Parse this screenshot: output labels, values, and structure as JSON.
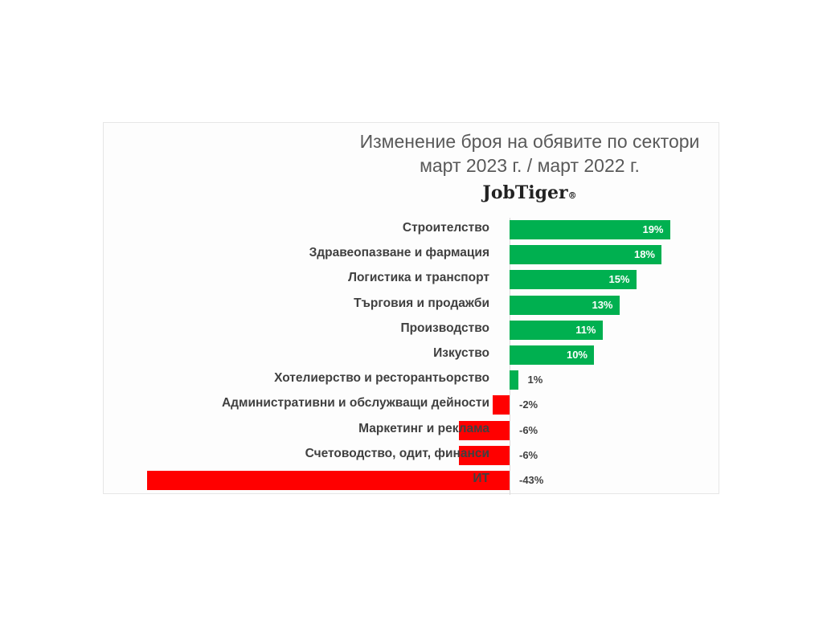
{
  "chart_data": {
    "type": "bar",
    "orientation": "horizontal",
    "title": "Изменение броя на обявите по сектори",
    "subtitle": "март 2023 г. / март 2022 г.",
    "brand": "JobTiger",
    "brand_mark": "®",
    "xlabel": "",
    "ylabel": "",
    "grid": false,
    "legend": null,
    "categories": [
      "Строителство",
      "Здравеопазване и фармация",
      "Логистика и транспорт",
      "Търговия и продажби",
      "Производство",
      "Изкуство",
      "Хотелиерство и ресторантьорство",
      "Административни и обслужващи дейности",
      "Маркетинг и реклама",
      "Счетоводство, одит, финанси",
      "ИТ"
    ],
    "values": [
      19,
      18,
      15,
      13,
      11,
      10,
      1,
      -2,
      -6,
      -6,
      -43
    ],
    "value_labels": [
      "19%",
      "18%",
      "15%",
      "13%",
      "11%",
      "10%",
      "1%",
      "-2%",
      "-6%",
      "-6%",
      "-43%"
    ],
    "colors": {
      "positive": "#00b050",
      "negative": "#ff0000"
    },
    "xlim": [
      -45,
      20
    ]
  }
}
